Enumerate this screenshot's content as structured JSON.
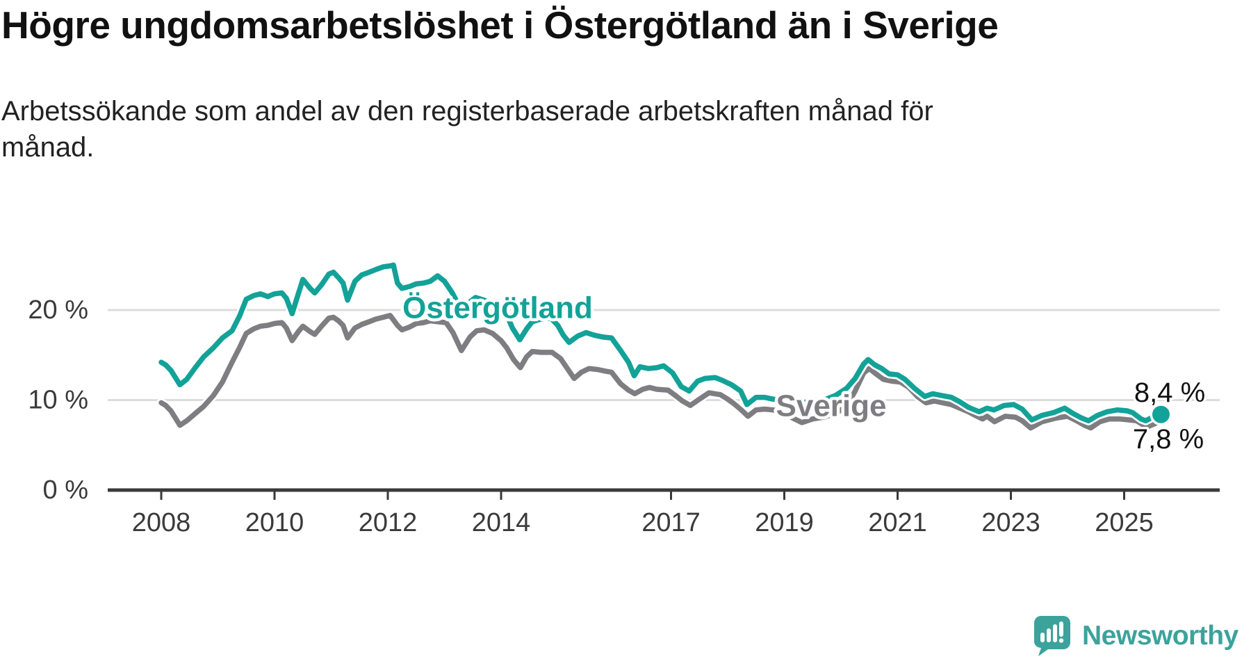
{
  "chart_data": {
    "type": "line",
    "title": "Högre ungdomsarbetslöshet i Östergötland än i Sverige",
    "subtitle_lines": {
      "line1": "Arbetssökande som andel av den registerbaserade arbetskraften månad för",
      "line2": "månad."
    },
    "xlabel": "",
    "ylabel": "",
    "xlim": [
      2008,
      2025.8
    ],
    "ylim": [
      0,
      29
    ],
    "grid": "horizontal",
    "legend_position": "inline-labels",
    "x_ticks": [
      {
        "label": "2008",
        "year": 2008
      },
      {
        "label": "2010",
        "year": 2010
      },
      {
        "label": "2012",
        "year": 2012
      },
      {
        "label": "2014",
        "year": 2014
      },
      {
        "label": "2017",
        "year": 2017
      },
      {
        "label": "2019",
        "year": 2019
      },
      {
        "label": "2021",
        "year": 2021
      },
      {
        "label": "2023",
        "year": 2023
      },
      {
        "label": "2025",
        "year": 2025
      }
    ],
    "y_ticks": [
      {
        "label": "0 %",
        "value": 0
      },
      {
        "label": "10 %",
        "value": 10
      },
      {
        "label": "20 %",
        "value": 20
      }
    ],
    "colors": {
      "ostergotland": "#13a298",
      "sverige": "#7d7d82",
      "gridline": "#dcdcdc",
      "axis": "#3a3a3a",
      "value_text": "#111111"
    },
    "series": [
      {
        "name": "Sverige",
        "label": "Sverige",
        "color": "#7d7d82",
        "end_value": 7.8,
        "points": [
          [
            2008.0,
            9.7
          ],
          [
            2008.08,
            9.4
          ],
          [
            2008.17,
            8.8
          ],
          [
            2008.33,
            7.2
          ],
          [
            2008.45,
            7.7
          ],
          [
            2008.6,
            8.5
          ],
          [
            2008.75,
            9.3
          ],
          [
            2008.92,
            10.5
          ],
          [
            2009.08,
            12.0
          ],
          [
            2009.25,
            14.2
          ],
          [
            2009.38,
            15.8
          ],
          [
            2009.5,
            17.4
          ],
          [
            2009.63,
            17.9
          ],
          [
            2009.75,
            18.2
          ],
          [
            2009.88,
            18.3
          ],
          [
            2010.0,
            18.5
          ],
          [
            2010.13,
            18.6
          ],
          [
            2010.21,
            18.0
          ],
          [
            2010.31,
            16.6
          ],
          [
            2010.42,
            17.6
          ],
          [
            2010.5,
            18.2
          ],
          [
            2010.63,
            17.6
          ],
          [
            2010.71,
            17.3
          ],
          [
            2010.83,
            18.2
          ],
          [
            2010.96,
            19.1
          ],
          [
            2011.04,
            19.2
          ],
          [
            2011.13,
            18.8
          ],
          [
            2011.21,
            18.3
          ],
          [
            2011.29,
            16.9
          ],
          [
            2011.42,
            18.0
          ],
          [
            2011.54,
            18.4
          ],
          [
            2011.67,
            18.7
          ],
          [
            2011.79,
            19.0
          ],
          [
            2011.92,
            19.2
          ],
          [
            2012.04,
            19.4
          ],
          [
            2012.17,
            18.3
          ],
          [
            2012.25,
            17.8
          ],
          [
            2012.38,
            18.1
          ],
          [
            2012.5,
            18.5
          ],
          [
            2012.63,
            18.6
          ],
          [
            2012.75,
            18.8
          ],
          [
            2012.88,
            18.7
          ],
          [
            2013.03,
            18.6
          ],
          [
            2013.15,
            17.5
          ],
          [
            2013.3,
            15.5
          ],
          [
            2013.45,
            17.0
          ],
          [
            2013.57,
            17.7
          ],
          [
            2013.7,
            17.8
          ],
          [
            2013.85,
            17.4
          ],
          [
            2014.0,
            16.6
          ],
          [
            2014.1,
            15.8
          ],
          [
            2014.22,
            14.5
          ],
          [
            2014.34,
            13.6
          ],
          [
            2014.45,
            14.8
          ],
          [
            2014.55,
            15.4
          ],
          [
            2014.7,
            15.3
          ],
          [
            2014.9,
            15.3
          ],
          [
            2015.05,
            14.6
          ],
          [
            2015.17,
            13.5
          ],
          [
            2015.29,
            12.4
          ],
          [
            2015.42,
            13.1
          ],
          [
            2015.55,
            13.5
          ],
          [
            2015.7,
            13.4
          ],
          [
            2015.85,
            13.2
          ],
          [
            2015.95,
            13.1
          ],
          [
            2016.11,
            11.8
          ],
          [
            2016.25,
            11.1
          ],
          [
            2016.36,
            10.7
          ],
          [
            2016.5,
            11.2
          ],
          [
            2016.62,
            11.4
          ],
          [
            2016.75,
            11.2
          ],
          [
            2016.95,
            11.1
          ],
          [
            2017.1,
            10.4
          ],
          [
            2017.2,
            9.9
          ],
          [
            2017.34,
            9.4
          ],
          [
            2017.5,
            10.1
          ],
          [
            2017.67,
            10.8
          ],
          [
            2017.87,
            10.6
          ],
          [
            2018.0,
            10.1
          ],
          [
            2018.11,
            9.6
          ],
          [
            2018.24,
            8.9
          ],
          [
            2018.36,
            8.2
          ],
          [
            2018.5,
            8.9
          ],
          [
            2018.65,
            9.0
          ],
          [
            2018.8,
            8.9
          ],
          [
            2018.95,
            8.7
          ],
          [
            2019.15,
            8.0
          ],
          [
            2019.31,
            7.5
          ],
          [
            2019.5,
            7.9
          ],
          [
            2019.7,
            8.1
          ],
          [
            2019.9,
            8.5
          ],
          [
            2020.1,
            9.3
          ],
          [
            2020.25,
            11.0
          ],
          [
            2020.4,
            13.0
          ],
          [
            2020.5,
            13.5
          ],
          [
            2020.62,
            12.9
          ],
          [
            2020.75,
            12.3
          ],
          [
            2020.9,
            12.1
          ],
          [
            2021.05,
            12.0
          ],
          [
            2021.2,
            11.4
          ],
          [
            2021.35,
            10.4
          ],
          [
            2021.5,
            9.7
          ],
          [
            2021.65,
            9.9
          ],
          [
            2021.8,
            9.7
          ],
          [
            2021.95,
            9.5
          ],
          [
            2022.1,
            9.1
          ],
          [
            2022.25,
            8.7
          ],
          [
            2022.4,
            8.2
          ],
          [
            2022.5,
            7.9
          ],
          [
            2022.58,
            8.2
          ],
          [
            2022.71,
            7.6
          ],
          [
            2022.9,
            8.2
          ],
          [
            2023.08,
            8.1
          ],
          [
            2023.2,
            7.7
          ],
          [
            2023.35,
            6.9
          ],
          [
            2023.55,
            7.6
          ],
          [
            2023.8,
            8.0
          ],
          [
            2024.0,
            8.2
          ],
          [
            2024.16,
            7.7
          ],
          [
            2024.3,
            7.2
          ],
          [
            2024.41,
            6.9
          ],
          [
            2024.57,
            7.6
          ],
          [
            2024.74,
            7.9
          ],
          [
            2024.92,
            7.9
          ],
          [
            2025.08,
            7.8
          ],
          [
            2025.22,
            7.7
          ],
          [
            2025.4,
            7.0
          ],
          [
            2025.55,
            7.4
          ],
          [
            2025.65,
            7.8
          ]
        ]
      },
      {
        "name": "Östergötland",
        "label": "Östergötland",
        "color": "#13a298",
        "end_value": 8.4,
        "end_dot": true,
        "points": [
          [
            2008.0,
            14.2
          ],
          [
            2008.08,
            13.9
          ],
          [
            2008.17,
            13.3
          ],
          [
            2008.33,
            11.7
          ],
          [
            2008.45,
            12.3
          ],
          [
            2008.6,
            13.6
          ],
          [
            2008.75,
            14.8
          ],
          [
            2008.92,
            15.8
          ],
          [
            2009.08,
            16.9
          ],
          [
            2009.25,
            17.7
          ],
          [
            2009.38,
            19.3
          ],
          [
            2009.5,
            21.2
          ],
          [
            2009.63,
            21.6
          ],
          [
            2009.75,
            21.8
          ],
          [
            2009.88,
            21.5
          ],
          [
            2010.0,
            21.8
          ],
          [
            2010.13,
            21.9
          ],
          [
            2010.21,
            21.3
          ],
          [
            2010.31,
            19.6
          ],
          [
            2010.42,
            21.8
          ],
          [
            2010.5,
            23.4
          ],
          [
            2010.63,
            22.4
          ],
          [
            2010.71,
            21.9
          ],
          [
            2010.83,
            22.8
          ],
          [
            2010.96,
            24.0
          ],
          [
            2011.04,
            24.2
          ],
          [
            2011.13,
            23.6
          ],
          [
            2011.21,
            23.0
          ],
          [
            2011.29,
            21.1
          ],
          [
            2011.42,
            23.2
          ],
          [
            2011.54,
            23.9
          ],
          [
            2011.67,
            24.2
          ],
          [
            2011.79,
            24.5
          ],
          [
            2011.92,
            24.8
          ],
          [
            2012.04,
            24.9
          ],
          [
            2012.1,
            25.0
          ],
          [
            2012.17,
            23.0
          ],
          [
            2012.25,
            22.4
          ],
          [
            2012.38,
            22.6
          ],
          [
            2012.5,
            22.9
          ],
          [
            2012.63,
            23.0
          ],
          [
            2012.75,
            23.2
          ],
          [
            2012.88,
            23.8
          ],
          [
            2013.0,
            23.2
          ],
          [
            2013.13,
            22.0
          ],
          [
            2013.3,
            20.0
          ],
          [
            2013.45,
            20.9
          ],
          [
            2013.55,
            21.4
          ],
          [
            2013.7,
            21.1
          ],
          [
            2013.85,
            20.7
          ],
          [
            2014.0,
            20.1
          ],
          [
            2014.1,
            19.5
          ],
          [
            2014.2,
            18.0
          ],
          [
            2014.33,
            16.7
          ],
          [
            2014.45,
            17.9
          ],
          [
            2014.55,
            18.7
          ],
          [
            2014.7,
            19.0
          ],
          [
            2014.88,
            19.1
          ],
          [
            2015.0,
            18.3
          ],
          [
            2015.1,
            17.2
          ],
          [
            2015.2,
            16.4
          ],
          [
            2015.35,
            17.1
          ],
          [
            2015.5,
            17.5
          ],
          [
            2015.65,
            17.2
          ],
          [
            2015.8,
            17.0
          ],
          [
            2015.95,
            16.9
          ],
          [
            2016.1,
            15.6
          ],
          [
            2016.25,
            14.2
          ],
          [
            2016.35,
            12.7
          ],
          [
            2016.45,
            13.7
          ],
          [
            2016.6,
            13.5
          ],
          [
            2016.75,
            13.6
          ],
          [
            2016.87,
            13.8
          ],
          [
            2017.03,
            13.0
          ],
          [
            2017.18,
            11.5
          ],
          [
            2017.32,
            11.0
          ],
          [
            2017.47,
            12.1
          ],
          [
            2017.6,
            12.4
          ],
          [
            2017.78,
            12.5
          ],
          [
            2017.9,
            12.2
          ],
          [
            2018.07,
            11.7
          ],
          [
            2018.23,
            11.0
          ],
          [
            2018.34,
            9.5
          ],
          [
            2018.5,
            10.3
          ],
          [
            2018.65,
            10.3
          ],
          [
            2018.8,
            10.1
          ],
          [
            2018.95,
            10.0
          ],
          [
            2019.1,
            9.9
          ],
          [
            2019.3,
            9.7
          ],
          [
            2019.5,
            9.9
          ],
          [
            2019.7,
            10.0
          ],
          [
            2019.9,
            10.5
          ],
          [
            2020.1,
            11.3
          ],
          [
            2020.25,
            12.4
          ],
          [
            2020.4,
            14.0
          ],
          [
            2020.48,
            14.5
          ],
          [
            2020.6,
            13.9
          ],
          [
            2020.72,
            13.5
          ],
          [
            2020.85,
            12.9
          ],
          [
            2021.0,
            12.8
          ],
          [
            2021.13,
            12.3
          ],
          [
            2021.3,
            11.3
          ],
          [
            2021.48,
            10.4
          ],
          [
            2021.62,
            10.7
          ],
          [
            2021.78,
            10.5
          ],
          [
            2021.95,
            10.3
          ],
          [
            2022.1,
            9.8
          ],
          [
            2022.25,
            9.2
          ],
          [
            2022.44,
            8.7
          ],
          [
            2022.58,
            9.1
          ],
          [
            2022.7,
            8.9
          ],
          [
            2022.88,
            9.4
          ],
          [
            2023.05,
            9.5
          ],
          [
            2023.2,
            9.0
          ],
          [
            2023.37,
            7.8
          ],
          [
            2023.55,
            8.3
          ],
          [
            2023.75,
            8.6
          ],
          [
            2023.95,
            9.1
          ],
          [
            2024.1,
            8.5
          ],
          [
            2024.25,
            8.0
          ],
          [
            2024.37,
            7.7
          ],
          [
            2024.53,
            8.3
          ],
          [
            2024.7,
            8.7
          ],
          [
            2024.88,
            8.9
          ],
          [
            2025.05,
            8.8
          ],
          [
            2025.15,
            8.6
          ],
          [
            2025.3,
            7.9
          ],
          [
            2025.38,
            7.7
          ],
          [
            2025.5,
            8.1
          ],
          [
            2025.65,
            8.4
          ]
        ]
      }
    ],
    "annotations": {
      "ostergotland_label": "Östergötland",
      "sverige_label": "Sverige",
      "end_value_top": "8,4 %",
      "end_value_bottom": "7,8 %"
    }
  },
  "footer": {
    "brand": "Newsworthy"
  },
  "icons": {
    "brand_icon": "newsworthy-speech-bubble-bar-chart"
  }
}
